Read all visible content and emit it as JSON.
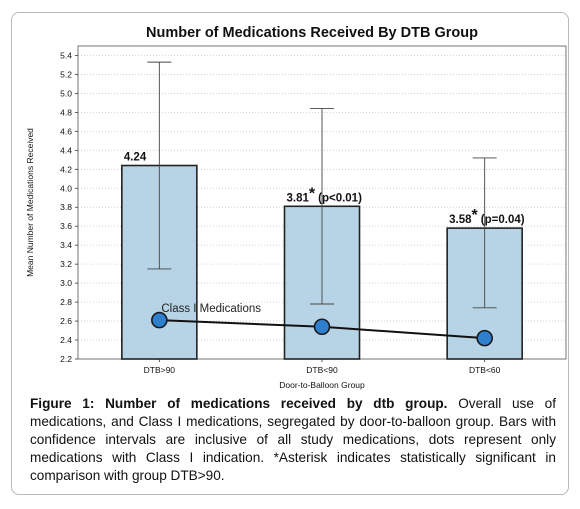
{
  "chart_data": {
    "type": "bar",
    "title": "Number of Medications Received By DTB Group",
    "xlabel": "Door-to-Balloon Group",
    "ylabel": "Mean Number of Medications Received",
    "ylim": [
      2.2,
      5.5
    ],
    "yticks": [
      "2.2",
      "2.4",
      "2.6",
      "2.8",
      "3.0",
      "3.2",
      "3.4",
      "3.6",
      "3.8",
      "4.0",
      "4.2",
      "4.4",
      "4.6",
      "4.8",
      "5.0",
      "5.2",
      "5.4"
    ],
    "categories": [
      "DTB>90",
      "DTB<90",
      "DTB<60"
    ],
    "values": [
      4.24,
      3.81,
      3.58
    ],
    "value_labels": [
      "4.24",
      "3.81",
      "3.58"
    ],
    "asterisk": [
      false,
      true,
      true
    ],
    "annotations": [
      "",
      "(p<0.01)",
      "(p=0.04)"
    ],
    "error_low": [
      3.15,
      2.78,
      2.74
    ],
    "error_high": [
      5.33,
      4.84,
      4.32
    ],
    "line_series": {
      "name": "Class I Medications",
      "values": [
        2.61,
        2.54,
        2.42
      ]
    },
    "grid": true,
    "colors": {
      "bar_fill": "#b7d4e6",
      "bar_stroke": "#222222",
      "dot_fill": "#2f7fcf",
      "line": "#111111"
    }
  },
  "caption": {
    "lead": "Figure 1: Number of medications received by dtb group.",
    "text": " Overall use of medications, and Class I medications, segregated by door-to-balloon group.  Bars with confidence intervals are inclusive of all study medications, dots represent only medications with Class I indication.  *Asterisk indicates statistically significant in comparison with group DTB>90."
  }
}
